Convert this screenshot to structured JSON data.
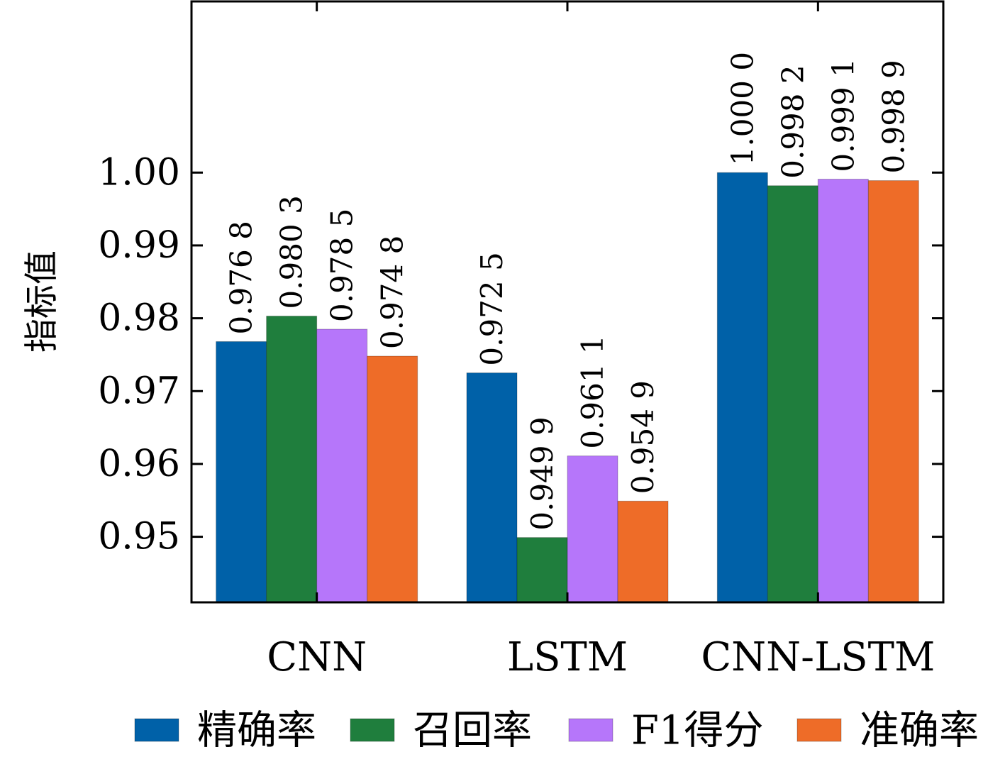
{
  "chart_data": {
    "type": "bar",
    "ylabel": "指标值",
    "ylim": [
      0.941,
      1.0235
    ],
    "yticks": [
      0.95,
      0.96,
      0.97,
      0.98,
      0.99,
      1.0
    ],
    "ytick_labels": [
      "0.95",
      "0.96",
      "0.97",
      "0.98",
      "0.99",
      "1.00"
    ],
    "categories": [
      "CNN",
      "LSTM",
      "CNN-LSTM"
    ],
    "series": [
      {
        "name": "精确率",
        "color": "#0061a8",
        "values": [
          0.9768,
          0.9725,
          1.0
        ],
        "labels": [
          "0.976 8",
          "0.972 5",
          "1.000 0"
        ]
      },
      {
        "name": "召回率",
        "color": "#1f7e3d",
        "values": [
          0.9803,
          0.9499,
          0.9982
        ],
        "labels": [
          "0.980 3",
          "0.949 9",
          "0.998 2"
        ]
      },
      {
        "name": "F1得分",
        "color": "#b676fa",
        "values": [
          0.9785,
          0.9611,
          0.9991
        ],
        "labels": [
          "0.978 5",
          "0.961 1",
          "0.999 1"
        ]
      },
      {
        "name": "准确率",
        "color": "#ee6c28",
        "values": [
          0.9748,
          0.9549,
          0.9989
        ],
        "labels": [
          "0.974 8",
          "0.954 9",
          "0.998 9"
        ]
      }
    ],
    "legend_position": "bottom",
    "grid": false
  }
}
